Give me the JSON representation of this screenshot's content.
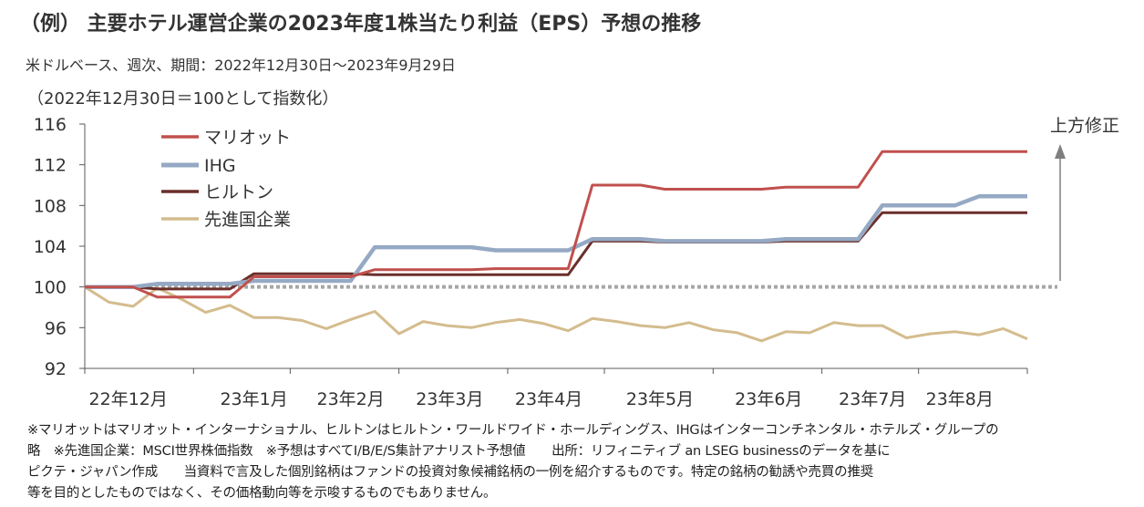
{
  "title": "（例） 主要ホテル運営企業の2023年度1株当たり利益（EPS）予想の推移",
  "subtitle": "米ドルベース、週次、期間：2022年12月30日～2023年9月29日",
  "index_note": "（2022年12月30日＝100として指数化）",
  "annotation": "上方修正",
  "footnotes": [
    "※マリオットはマリオット・インターナショナル、ヒルトンはヒルトン・ワールドワイド・ホールディングス、IHGはインターコンチネンタル・ホテルズ・グループの",
    "略　※先進国企業：MSCI世界株価指数　※予想はすべてI/B/E/S集計アナリスト予想値　　出所：リフィニティブ an LSEG businessのデータを基に",
    "ピクテ・ジャパン作成　　当資料で言及した個別銘柄はファンドの投資対象候補銘柄の一例を紹介するものです。特定の銘柄の勧誘や売買の推奨",
    "等を目的としたものではなく、その価格動向等を示唆するものでもありません。"
  ],
  "colors": {
    "marriott": "#c0504d",
    "ihg": "#95a9c4",
    "hilton": "#6b2f2a",
    "developed": "#d4bc8e",
    "baseline": "#a6a6a6",
    "axis": "#595959",
    "arrow": "#7f7f7f"
  },
  "chart_data": {
    "type": "line",
    "x_labels": [
      "22年12月",
      "23年1月",
      "23年2月",
      "23年3月",
      "23年4月",
      "23年5月",
      "23年6月",
      "23年7月",
      "23年8月"
    ],
    "ylim": [
      92,
      116
    ],
    "yticks": [
      92,
      96,
      100,
      104,
      108,
      112,
      116
    ],
    "baseline": 100,
    "series": [
      {
        "name": "マリオット",
        "key": "marriott",
        "values": [
          100,
          100,
          100,
          99,
          99,
          99,
          99,
          101,
          101,
          101,
          101,
          101,
          101.7,
          101.7,
          101.7,
          101.7,
          101.7,
          101.8,
          101.8,
          101.8,
          101.8,
          110,
          110,
          110,
          109.6,
          109.6,
          109.6,
          109.6,
          109.6,
          109.8,
          109.8,
          109.8,
          109.8,
          113.3,
          113.3,
          113.3,
          113.3,
          113.3,
          113.3,
          113.3
        ]
      },
      {
        "name": "IHG",
        "key": "ihg",
        "values": [
          100,
          100,
          100,
          100.3,
          100.3,
          100.3,
          100.3,
          100.6,
          100.6,
          100.6,
          100.6,
          100.6,
          103.9,
          103.9,
          103.9,
          103.9,
          103.9,
          103.6,
          103.6,
          103.6,
          103.6,
          104.7,
          104.7,
          104.7,
          104.5,
          104.5,
          104.5,
          104.5,
          104.5,
          104.7,
          104.7,
          104.7,
          104.7,
          108,
          108,
          108,
          108,
          108.9,
          108.9,
          108.9
        ]
      },
      {
        "name": "ヒルトン",
        "key": "hilton",
        "values": [
          100,
          100,
          100,
          99.8,
          99.8,
          99.8,
          99.8,
          101.3,
          101.3,
          101.3,
          101.3,
          101.3,
          101.2,
          101.2,
          101.2,
          101.2,
          101.2,
          101.2,
          101.2,
          101.2,
          101.2,
          104.5,
          104.5,
          104.5,
          104.4,
          104.4,
          104.4,
          104.4,
          104.4,
          104.5,
          104.5,
          104.5,
          104.5,
          107.3,
          107.3,
          107.3,
          107.3,
          107.3,
          107.3,
          107.3
        ]
      },
      {
        "name": "先進国企業",
        "key": "developed",
        "values": [
          100,
          98.5,
          98.1,
          99.9,
          98.8,
          97.5,
          98.2,
          97,
          97,
          96.7,
          95.9,
          96.8,
          97.6,
          95.4,
          96.6,
          96.2,
          96,
          96.5,
          96.8,
          96.4,
          95.7,
          96.9,
          96.6,
          96.2,
          96,
          96.5,
          95.8,
          95.5,
          94.7,
          95.6,
          95.5,
          96.5,
          96.2,
          96.2,
          95,
          95.4,
          95.6,
          95.3,
          95.9,
          94.9
        ]
      }
    ]
  }
}
